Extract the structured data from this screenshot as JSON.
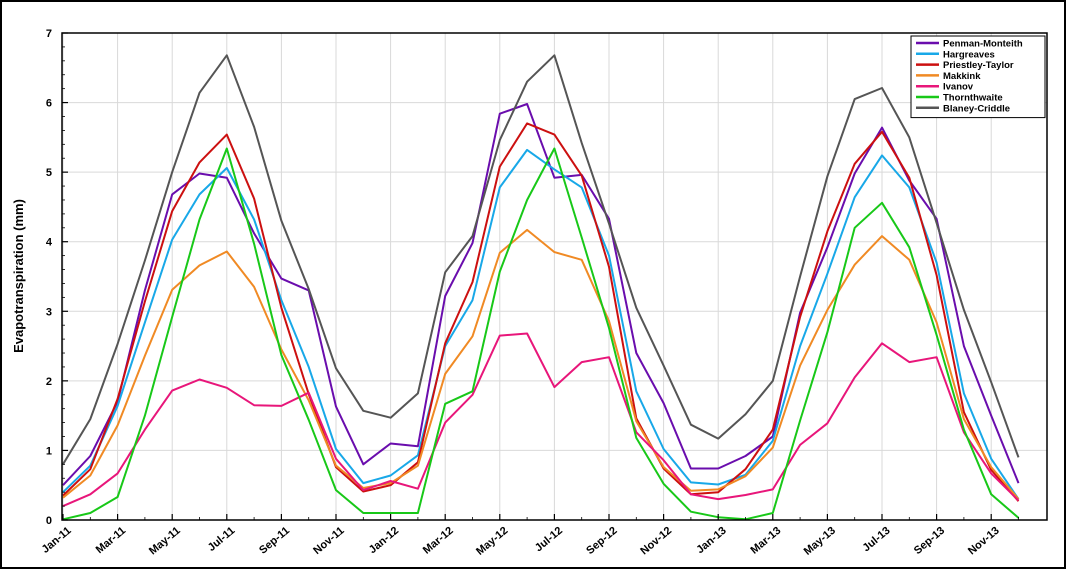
{
  "chart_data": {
    "type": "line",
    "title": "",
    "xlabel": "",
    "ylabel": "Evapotranspiration (mm)",
    "ylim": [
      0,
      7
    ],
    "yticks": [
      "0",
      "1",
      "2",
      "3",
      "4",
      "5",
      "6",
      "7"
    ],
    "grid": true,
    "legend_position": "top-right",
    "x": [
      "Jan-11",
      "Feb-11",
      "Mar-11",
      "Apr-11",
      "May-11",
      "Jun-11",
      "Jul-11",
      "Aug-11",
      "Sep-11",
      "Oct-11",
      "Nov-11",
      "Dec-11",
      "Jan-12",
      "Feb-12",
      "Mar-12",
      "Apr-12",
      "May-12",
      "Jun-12",
      "Jul-12",
      "Aug-12",
      "Sep-12",
      "Oct-12",
      "Nov-12",
      "Dec-12",
      "Jan-13",
      "Feb-13",
      "Mar-13",
      "Apr-13",
      "May-13",
      "Jun-13",
      "Jul-13",
      "Aug-13",
      "Sep-13",
      "Oct-13",
      "Nov-13",
      "Dec-13"
    ],
    "xtick_labels": [
      "Jan-11",
      "Mar-11",
      "May-11",
      "Jul-11",
      "Sep-11",
      "Nov-11",
      "Jan-12",
      "Mar-12",
      "May-12",
      "Jul-12",
      "Sep-12",
      "Nov-12",
      "Jan-13",
      "Mar-13",
      "May-13",
      "Jul-13",
      "Sep-13",
      "Nov-13"
    ],
    "series": [
      {
        "name": "Penman-Monteith",
        "color": "#6a0dad",
        "values": [
          0.5,
          0.92,
          1.7,
          3.3,
          4.68,
          4.98,
          4.92,
          4.12,
          3.47,
          3.3,
          1.63,
          0.8,
          1.1,
          1.06,
          3.22,
          3.98,
          5.84,
          5.98,
          4.92,
          4.96,
          4.33,
          2.4,
          1.68,
          0.74,
          0.74,
          0.92,
          1.2,
          2.98,
          3.92,
          4.98,
          5.64,
          4.88,
          4.33,
          2.5,
          1.5,
          0.53
        ]
      },
      {
        "name": "Hargreaves",
        "color": "#18a8e8",
        "values": [
          0.4,
          0.78,
          1.64,
          2.84,
          4.03,
          4.68,
          5.06,
          4.32,
          3.16,
          2.2,
          1.02,
          0.53,
          0.64,
          0.93,
          2.5,
          3.16,
          4.78,
          5.32,
          5.04,
          4.78,
          3.8,
          1.85,
          1.02,
          0.54,
          0.51,
          0.65,
          1.14,
          2.5,
          3.54,
          4.64,
          5.24,
          4.78,
          3.7,
          1.82,
          0.88,
          0.3
        ]
      },
      {
        "name": "Priestley-Taylor",
        "color": "#cc1010",
        "values": [
          0.35,
          0.73,
          1.74,
          3.14,
          4.44,
          5.14,
          5.54,
          4.62,
          3.05,
          1.81,
          0.76,
          0.41,
          0.5,
          0.83,
          2.54,
          3.42,
          5.08,
          5.7,
          5.54,
          4.95,
          3.64,
          1.46,
          0.74,
          0.37,
          0.4,
          0.73,
          1.3,
          2.92,
          4.15,
          5.12,
          5.58,
          4.92,
          3.52,
          1.55,
          0.72,
          0.27
        ]
      },
      {
        "name": "Makkink",
        "color": "#f08a24",
        "values": [
          0.32,
          0.64,
          1.36,
          2.36,
          3.31,
          3.66,
          3.86,
          3.35,
          2.45,
          1.72,
          0.78,
          0.46,
          0.53,
          0.78,
          2.1,
          2.64,
          3.84,
          4.17,
          3.85,
          3.74,
          2.86,
          1.42,
          0.76,
          0.42,
          0.44,
          0.63,
          1.04,
          2.22,
          3.02,
          3.67,
          4.08,
          3.74,
          2.84,
          1.45,
          0.76,
          0.3
        ]
      },
      {
        "name": "Ivanov",
        "color": "#e8167a",
        "values": [
          0.2,
          0.37,
          0.67,
          1.3,
          1.86,
          2.02,
          1.9,
          1.65,
          1.64,
          1.83,
          0.88,
          0.43,
          0.56,
          0.45,
          1.4,
          1.8,
          2.65,
          2.68,
          1.91,
          2.27,
          2.34,
          1.26,
          0.86,
          0.37,
          0.3,
          0.36,
          0.44,
          1.08,
          1.39,
          2.05,
          2.54,
          2.27,
          2.34,
          1.26,
          0.67,
          0.28
        ]
      },
      {
        "name": "Thornthwaite",
        "color": "#18c818",
        "values": [
          0.01,
          0.1,
          0.33,
          1.5,
          2.92,
          4.32,
          5.34,
          3.97,
          2.37,
          1.44,
          0.43,
          0.1,
          0.1,
          0.1,
          1.67,
          1.85,
          3.57,
          4.6,
          5.34,
          4.06,
          2.76,
          1.18,
          0.52,
          0.12,
          0.04,
          0.01,
          0.1,
          1.43,
          2.7,
          4.2,
          4.56,
          3.92,
          2.66,
          1.3,
          0.37,
          0.03
        ]
      },
      {
        "name": "Blaney-Criddle",
        "color": "#555555",
        "values": [
          0.8,
          1.45,
          2.53,
          3.73,
          5.0,
          6.14,
          6.68,
          5.65,
          4.3,
          3.32,
          2.18,
          1.57,
          1.47,
          1.82,
          3.56,
          4.08,
          5.46,
          6.3,
          6.68,
          5.42,
          4.26,
          3.05,
          2.22,
          1.37,
          1.17,
          1.52,
          2.0,
          3.5,
          4.94,
          6.05,
          6.21,
          5.5,
          4.27,
          3.02,
          1.98,
          0.9
        ]
      }
    ]
  }
}
